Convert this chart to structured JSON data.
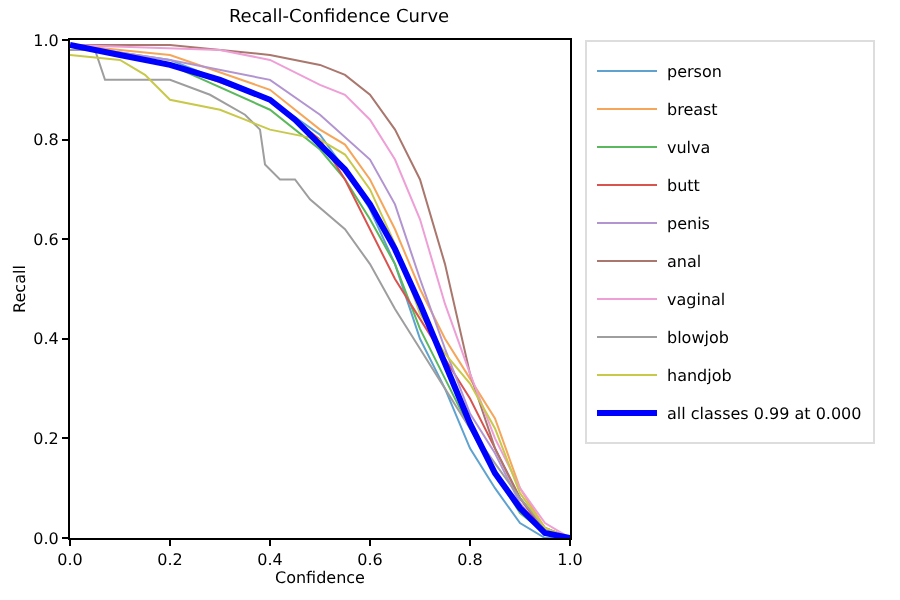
{
  "chart_data": {
    "type": "line",
    "title": "Recall-Confidence Curve",
    "xlabel": "Confidence",
    "ylabel": "Recall",
    "xlim": [
      0,
      1
    ],
    "ylim": [
      0,
      1
    ],
    "xticks": [
      {
        "value": 0,
        "label": "0.0"
      },
      0.2,
      0.4,
      0.6,
      0.8,
      {
        "value": 1,
        "label": "1.0"
      }
    ],
    "yticks": [
      {
        "value": 0,
        "label": "0.0"
      },
      0.2,
      0.4,
      0.6,
      0.8,
      {
        "value": 1,
        "label": "1.0"
      }
    ],
    "grid": false,
    "legend": "top right",
    "series": [
      {
        "name": "person",
        "color": "#5fa2cf",
        "x": [
          0,
          0.2,
          0.4,
          0.5,
          0.55,
          0.6,
          0.65,
          0.7,
          0.75,
          0.8,
          0.85,
          0.9,
          0.95,
          1
        ],
        "values": [
          0.99,
          0.96,
          0.88,
          0.81,
          0.74,
          0.66,
          0.55,
          0.4,
          0.3,
          0.18,
          0.1,
          0.03,
          0,
          0
        ]
      },
      {
        "name": "breast",
        "color": "#f5a65b",
        "x": [
          0,
          0.2,
          0.4,
          0.5,
          0.55,
          0.6,
          0.65,
          0.7,
          0.75,
          0.8,
          0.85,
          0.9,
          0.95,
          1
        ],
        "values": [
          0.99,
          0.97,
          0.9,
          0.82,
          0.79,
          0.72,
          0.62,
          0.5,
          0.4,
          0.32,
          0.24,
          0.1,
          0.02,
          0
        ]
      },
      {
        "name": "vulva",
        "color": "#5cb85c",
        "x": [
          0,
          0.2,
          0.4,
          0.5,
          0.55,
          0.6,
          0.65,
          0.7,
          0.75,
          0.8,
          0.85,
          0.9,
          0.95,
          1
        ],
        "values": [
          0.99,
          0.95,
          0.86,
          0.78,
          0.72,
          0.64,
          0.55,
          0.42,
          0.32,
          0.22,
          0.13,
          0.05,
          0.01,
          0
        ]
      },
      {
        "name": "butt",
        "color": "#d9534f",
        "x": [
          0,
          0.2,
          0.4,
          0.5,
          0.55,
          0.6,
          0.65,
          0.7,
          0.75,
          0.8,
          0.85,
          0.9,
          0.95,
          1
        ],
        "values": [
          0.99,
          0.95,
          0.88,
          0.8,
          0.72,
          0.62,
          0.52,
          0.44,
          0.36,
          0.28,
          0.18,
          0.08,
          0.01,
          0
        ]
      },
      {
        "name": "penis",
        "color": "#b294d0",
        "x": [
          0,
          0.2,
          0.4,
          0.5,
          0.6,
          0.65,
          0.7,
          0.75,
          0.8,
          0.85,
          0.9,
          0.95,
          1
        ],
        "values": [
          0.99,
          0.96,
          0.92,
          0.85,
          0.76,
          0.67,
          0.52,
          0.38,
          0.25,
          0.17,
          0.07,
          0.01,
          0
        ]
      },
      {
        "name": "anal",
        "color": "#a9776e",
        "x": [
          0,
          0.2,
          0.4,
          0.5,
          0.55,
          0.6,
          0.65,
          0.7,
          0.75,
          0.8,
          0.85,
          0.9,
          0.95,
          1
        ],
        "values": [
          0.99,
          0.99,
          0.97,
          0.95,
          0.93,
          0.89,
          0.82,
          0.72,
          0.55,
          0.33,
          0.18,
          0.08,
          0.02,
          0
        ]
      },
      {
        "name": "vaginal",
        "color": "#ee9fd6",
        "x": [
          0,
          0.3,
          0.4,
          0.5,
          0.55,
          0.6,
          0.65,
          0.7,
          0.75,
          0.8,
          0.85,
          0.9,
          0.95,
          1
        ],
        "values": [
          0.99,
          0.98,
          0.96,
          0.91,
          0.89,
          0.84,
          0.76,
          0.64,
          0.47,
          0.33,
          0.2,
          0.1,
          0.03,
          0
        ]
      },
      {
        "name": "blowjob",
        "color": "#9e9e9e",
        "x": [
          0,
          0.05,
          0.07,
          0.2,
          0.28,
          0.35,
          0.38,
          0.39,
          0.42,
          0.45,
          0.48,
          0.55,
          0.6,
          0.65,
          0.7,
          0.75,
          0.8,
          0.85,
          0.9,
          0.95,
          1
        ],
        "values": [
          0.98,
          0.98,
          0.92,
          0.92,
          0.89,
          0.85,
          0.82,
          0.75,
          0.72,
          0.72,
          0.68,
          0.62,
          0.55,
          0.46,
          0.38,
          0.3,
          0.22,
          0.15,
          0.08,
          0.02,
          0
        ]
      },
      {
        "name": "handjob",
        "color": "#c8c84a",
        "x": [
          0,
          0.1,
          0.15,
          0.2,
          0.3,
          0.35,
          0.4,
          0.5,
          0.55,
          0.6,
          0.65,
          0.7,
          0.75,
          0.8,
          0.85,
          0.9,
          0.95,
          1
        ],
        "values": [
          0.97,
          0.96,
          0.93,
          0.88,
          0.86,
          0.84,
          0.82,
          0.8,
          0.77,
          0.7,
          0.59,
          0.45,
          0.37,
          0.31,
          0.22,
          0.09,
          0.02,
          0
        ]
      },
      {
        "name": "all classes 0.99 at 0.000",
        "color": "#0000ff",
        "x": [
          0,
          0.1,
          0.2,
          0.3,
          0.4,
          0.45,
          0.5,
          0.55,
          0.6,
          0.65,
          0.7,
          0.75,
          0.8,
          0.85,
          0.9,
          0.95,
          1
        ],
        "values": [
          0.99,
          0.97,
          0.95,
          0.92,
          0.88,
          0.84,
          0.79,
          0.74,
          0.67,
          0.58,
          0.47,
          0.35,
          0.23,
          0.13,
          0.06,
          0.01,
          0
        ]
      }
    ]
  }
}
